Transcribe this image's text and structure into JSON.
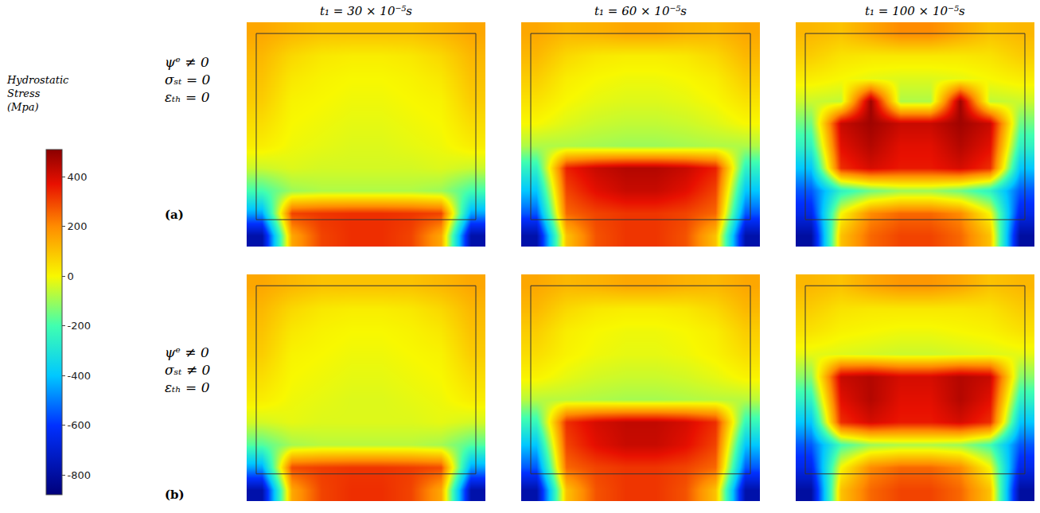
{
  "chart_data": {
    "type": "heatmap",
    "tick_labels": false,
    "columns": [
      "t₁ = 30 × 10⁻⁵s",
      "t₁ = 60 × 10⁻⁵s",
      "t₁ = 100 × 10⁻⁵s"
    ],
    "colorbar": {
      "title": "Hydrostatic Stress (Mpa)",
      "range": [
        -880,
        510
      ],
      "ticks": [
        400,
        200,
        0,
        -200,
        -400,
        -600,
        -800
      ]
    },
    "rows": [
      {
        "label": [
          "ψᵉ ≠ 0",
          "σₛₜ = 0",
          "εₜₕ = 0"
        ],
        "letter": "(a)",
        "panels": [
          [
            [
              150,
              120,
              100,
              100,
              100,
              100,
              120,
              150
            ],
            [
              120,
              60,
              30,
              20,
              20,
              30,
              60,
              120
            ],
            [
              100,
              30,
              10,
              0,
              0,
              10,
              30,
              100
            ],
            [
              80,
              10,
              0,
              -10,
              -10,
              0,
              10,
              80
            ],
            [
              50,
              0,
              -10,
              -20,
              -20,
              -10,
              0,
              50
            ],
            [
              20,
              -10,
              -20,
              -30,
              -30,
              -20,
              -10,
              20
            ],
            [
              -50,
              -30,
              -40,
              -40,
              -40,
              -40,
              -30,
              -50
            ],
            [
              -200,
              -100,
              -80,
              -80,
              -80,
              -80,
              -100,
              -200
            ],
            [
              -450,
              300,
              320,
              330,
              330,
              320,
              300,
              -450
            ],
            [
              -780,
              150,
              300,
              330,
              330,
              300,
              150,
              -780
            ]
          ],
          [
            [
              150,
              120,
              130,
              150,
              150,
              130,
              120,
              150
            ],
            [
              120,
              60,
              30,
              20,
              20,
              30,
              60,
              120
            ],
            [
              80,
              20,
              0,
              -10,
              -10,
              0,
              20,
              80
            ],
            [
              40,
              0,
              -20,
              -30,
              -30,
              -20,
              0,
              40
            ],
            [
              0,
              -30,
              -50,
              -60,
              -60,
              -50,
              -30,
              0
            ],
            [
              -80,
              -80,
              -90,
              -100,
              -100,
              -90,
              -80,
              -80
            ],
            [
              -250,
              350,
              420,
              450,
              450,
              420,
              350,
              -250
            ],
            [
              -400,
              300,
              380,
              420,
              420,
              380,
              300,
              -400
            ],
            [
              -550,
              250,
              300,
              320,
              320,
              300,
              250,
              -550
            ],
            [
              -780,
              100,
              280,
              320,
              320,
              280,
              100,
              -780
            ]
          ],
          [
            [
              120,
              100,
              150,
              200,
              200,
              150,
              100,
              120
            ],
            [
              80,
              40,
              30,
              30,
              30,
              30,
              40,
              80
            ],
            [
              20,
              0,
              -20,
              -30,
              -30,
              -20,
              0,
              20
            ],
            [
              -50,
              -60,
              480,
              -80,
              -80,
              480,
              -60,
              -50
            ],
            [
              -150,
              420,
              480,
              420,
              420,
              480,
              420,
              -150
            ],
            [
              -250,
              380,
              450,
              380,
              380,
              450,
              380,
              -250
            ],
            [
              -400,
              330,
              400,
              360,
              360,
              400,
              330,
              -400
            ],
            [
              -550,
              -250,
              -150,
              -100,
              -100,
              -150,
              -250,
              -550
            ],
            [
              -650,
              0,
              200,
              250,
              250,
              200,
              0,
              -650
            ],
            [
              -800,
              100,
              250,
              300,
              300,
              250,
              100,
              -800
            ]
          ]
        ]
      },
      {
        "label": [
          "ψᵉ ≠ 0",
          "σₛₜ ≠ 0",
          "εₜₕ = 0"
        ],
        "letter": "(b)",
        "panels": [
          [
            [
              150,
              120,
              100,
              100,
              100,
              100,
              120,
              150
            ],
            [
              120,
              60,
              30,
              20,
              20,
              30,
              60,
              120
            ],
            [
              100,
              30,
              10,
              0,
              0,
              10,
              30,
              100
            ],
            [
              80,
              10,
              0,
              -10,
              -10,
              0,
              10,
              80
            ],
            [
              50,
              0,
              -10,
              -20,
              -20,
              -10,
              0,
              50
            ],
            [
              20,
              -10,
              -20,
              -30,
              -30,
              -20,
              -10,
              20
            ],
            [
              -40,
              -20,
              -30,
              -30,
              -30,
              -30,
              -20,
              -40
            ],
            [
              -180,
              -90,
              -70,
              -70,
              -70,
              -70,
              -90,
              -180
            ],
            [
              -450,
              290,
              310,
              320,
              320,
              310,
              290,
              -450
            ],
            [
              -780,
              150,
              300,
              330,
              330,
              300,
              150,
              -780
            ]
          ],
          [
            [
              150,
              120,
              130,
              150,
              150,
              130,
              120,
              150
            ],
            [
              120,
              60,
              30,
              20,
              20,
              30,
              60,
              120
            ],
            [
              80,
              20,
              0,
              -10,
              -10,
              0,
              20,
              80
            ],
            [
              50,
              10,
              -10,
              -20,
              -20,
              -10,
              10,
              50
            ],
            [
              10,
              -20,
              -40,
              -50,
              -50,
              -40,
              -20,
              10
            ],
            [
              -70,
              -70,
              -80,
              -90,
              -90,
              -80,
              -70,
              -70
            ],
            [
              -230,
              330,
              400,
              430,
              430,
              400,
              330,
              -230
            ],
            [
              -400,
              300,
              380,
              420,
              420,
              380,
              300,
              -400
            ],
            [
              -550,
              250,
              300,
              320,
              320,
              300,
              250,
              -550
            ],
            [
              -780,
              100,
              280,
              320,
              320,
              280,
              100,
              -780
            ]
          ],
          [
            [
              120,
              100,
              150,
              180,
              180,
              150,
              100,
              120
            ],
            [
              80,
              40,
              30,
              30,
              30,
              30,
              40,
              80
            ],
            [
              40,
              10,
              0,
              -10,
              -10,
              0,
              10,
              40
            ],
            [
              -20,
              -30,
              -40,
              -50,
              -50,
              -40,
              -30,
              -20
            ],
            [
              -120,
              420,
              450,
              400,
              400,
              450,
              420,
              -120
            ],
            [
              -250,
              380,
              450,
              380,
              380,
              450,
              380,
              -250
            ],
            [
              -400,
              330,
              400,
              360,
              360,
              400,
              330,
              -400
            ],
            [
              -550,
              -200,
              -100,
              -80,
              -80,
              -100,
              -200,
              -550
            ],
            [
              -650,
              0,
              200,
              250,
              250,
              200,
              0,
              -650
            ],
            [
              -800,
              100,
              250,
              300,
              300,
              250,
              100,
              -800
            ]
          ]
        ]
      }
    ]
  }
}
